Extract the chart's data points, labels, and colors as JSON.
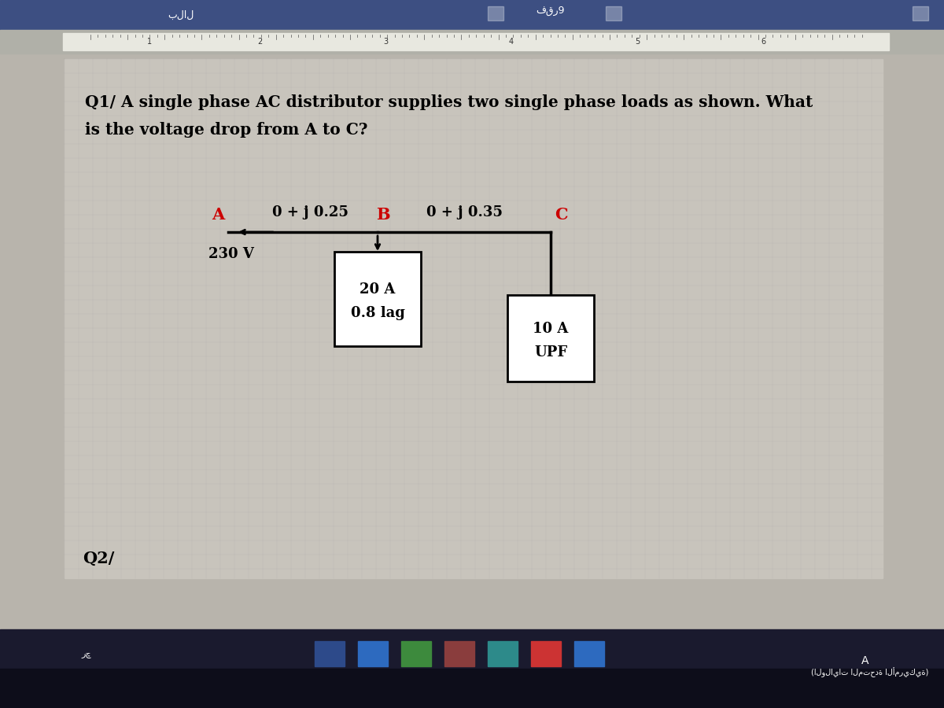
{
  "title_line1": "Q1/ A single phase AC distributor supplies two single phase loads as shown. What",
  "title_line2": "is the voltage drop from A to C?",
  "q2_label": "Q2/",
  "node_A_label": "A",
  "node_B_label": "B",
  "node_C_label": "C",
  "impedance_AB": "0 + j 0.25",
  "impedance_BC": "0 + j 0.35",
  "voltage_label": "230 V",
  "load1_line1": "20 A",
  "load1_line2": "0.8 lag",
  "load2_line1": "10 A",
  "load2_line2": "UPF",
  "node_color": "#cc0000",
  "line_color": "#000000",
  "text_color": "#000000",
  "doc_bg": "#d4d0c8",
  "toolbar_bg": "#4a5a8a",
  "ruler_bg": "#e8e8e0",
  "page_bg": "#c8c4bc",
  "taskbar_bg": "#1a1a2e",
  "fig_bg": "#a0a0a0"
}
